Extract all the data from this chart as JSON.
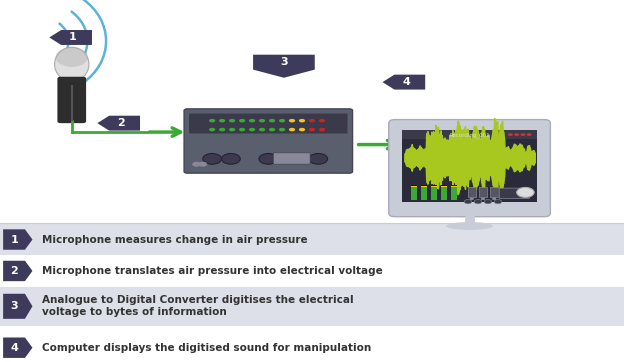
{
  "bg_color": "#ffffff",
  "arrow_color": "#3aaa35",
  "label_box_color": "#3d3a5c",
  "label_text_color": "#ffffff",
  "row_colors": [
    "#dde0e8",
    "#ffffff",
    "#dde0e8",
    "#ffffff"
  ],
  "step_box_color": "#3d3a5c",
  "step_text_color": "#ffffff",
  "step_labels": [
    "1",
    "2",
    "3",
    "4"
  ],
  "step_texts": [
    "Microphone measures change in air pressure",
    "Microphone translates air pressure into electrical voltage",
    "Analogue to Digital Converter digitises the electrical\nvoltage to bytes of information",
    "Computer displays the digitised sound for manipulation"
  ],
  "sound_waves_color": "#5ab4d6",
  "mic_body_color": "#2d2d2d",
  "mic_head_color": "#e0e0e0",
  "adc_color": "#5a5f6e",
  "monitor_frame_color": "#c8ccd6",
  "monitor_screen_color": "#2a2a3a",
  "waveform_color": "#a8c820"
}
